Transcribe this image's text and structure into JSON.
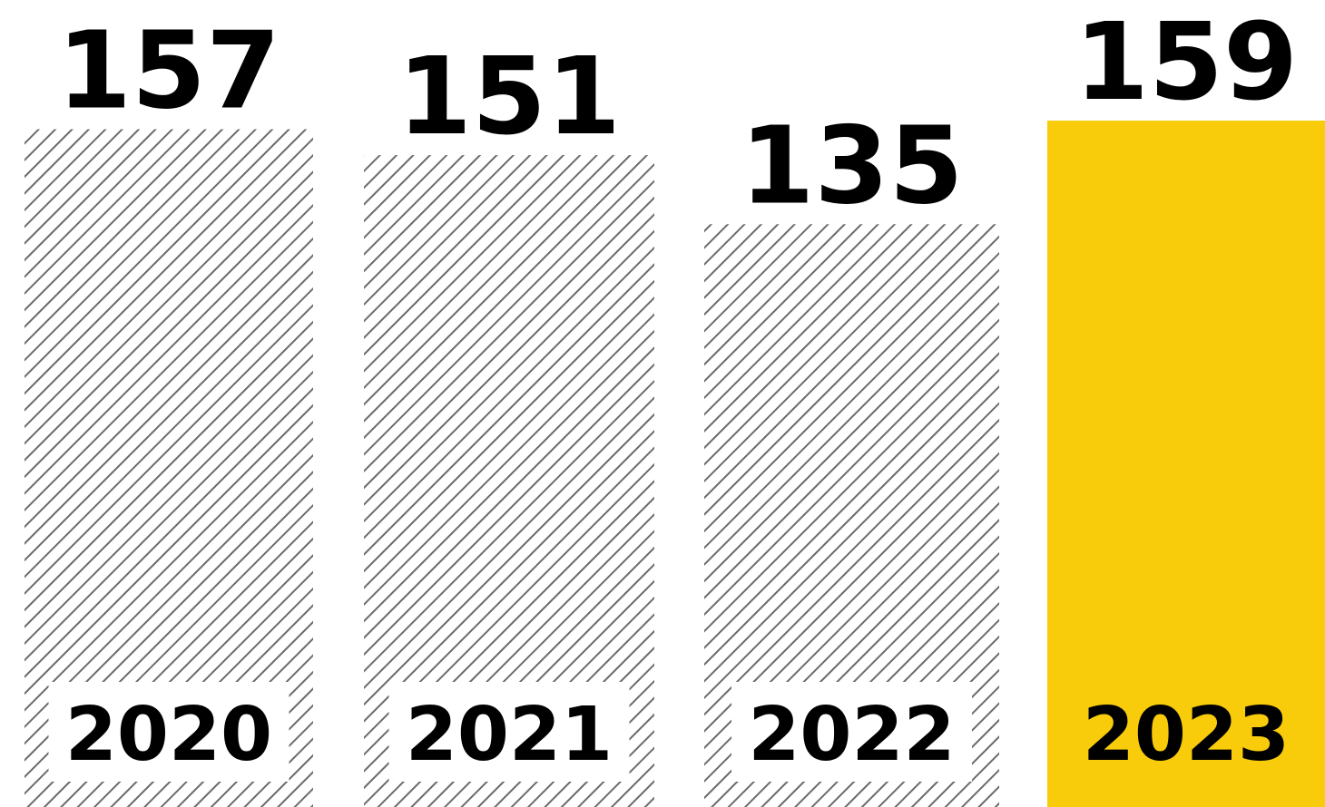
{
  "chart_data": {
    "type": "bar",
    "categories": [
      "2020",
      "2021",
      "2022",
      "2023"
    ],
    "values": [
      157,
      151,
      135,
      159
    ],
    "highlight_index": 3,
    "colors": {
      "hatch_line": "#6b6b6b",
      "highlight": "#f9cc0b",
      "background": "#ffffff",
      "text": "#000000"
    },
    "title": "",
    "xlabel": "",
    "ylabel": ""
  }
}
